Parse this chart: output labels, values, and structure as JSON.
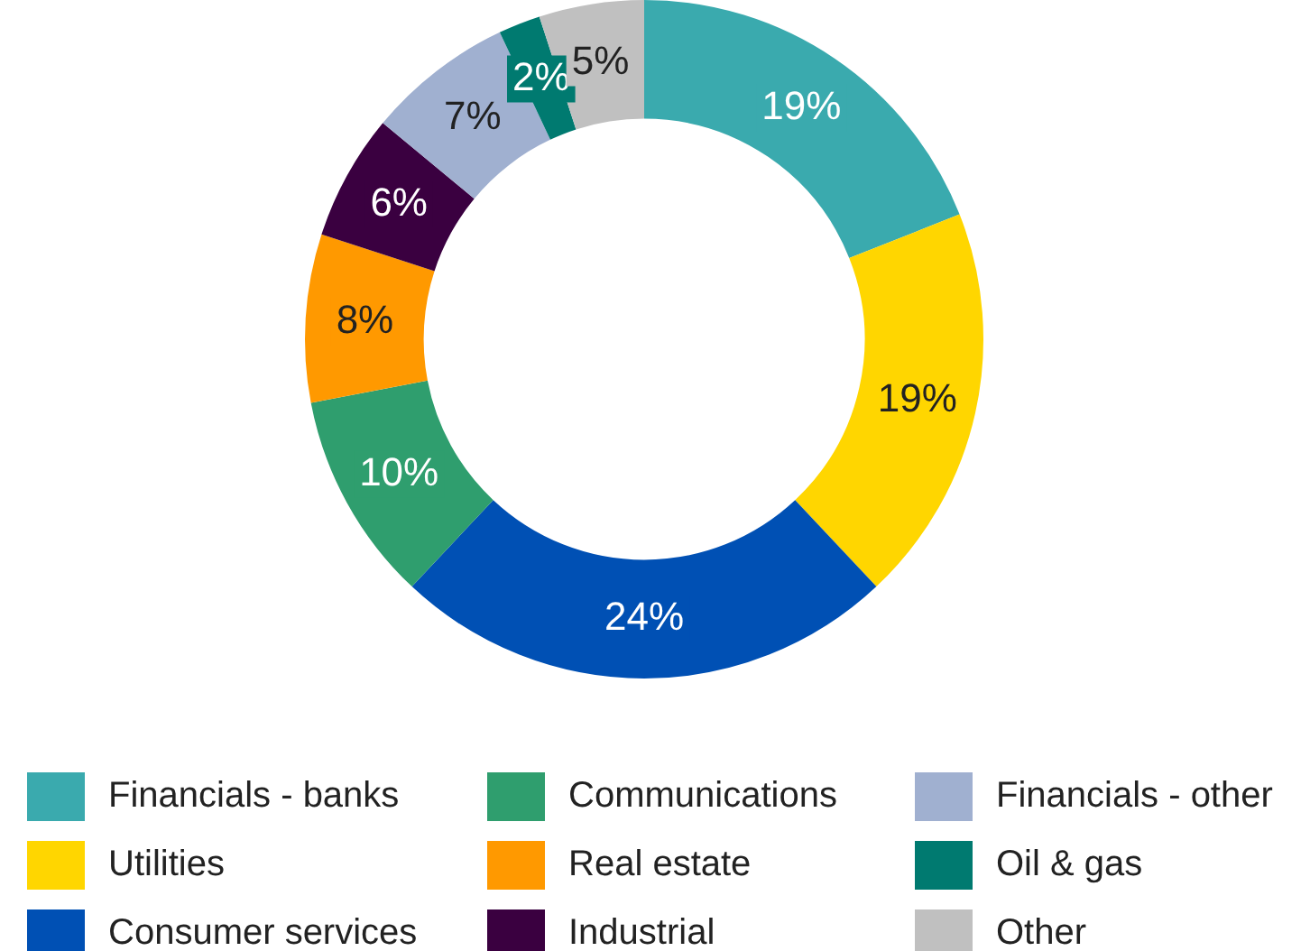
{
  "chart_data": {
    "type": "donut",
    "categories": [
      "Financials - banks",
      "Utilities",
      "Consumer services",
      "Communications",
      "Real estate",
      "Industrial",
      "Financials - other",
      "Oil & gas",
      "Other"
    ],
    "values": [
      19,
      19,
      24,
      10,
      8,
      6,
      7,
      2,
      5
    ],
    "colors": [
      "#3aaaae",
      "#ffd600",
      "#0050b4",
      "#2f9e6e",
      "#ff9900",
      "#3a0040",
      "#a0b0d0",
      "#007a70",
      "#c0c0c0"
    ],
    "value_labels": [
      "19%",
      "19%",
      "24%",
      "10%",
      "8%",
      "6%",
      "7%",
      "2%",
      "5%"
    ],
    "legend": "bottom"
  }
}
